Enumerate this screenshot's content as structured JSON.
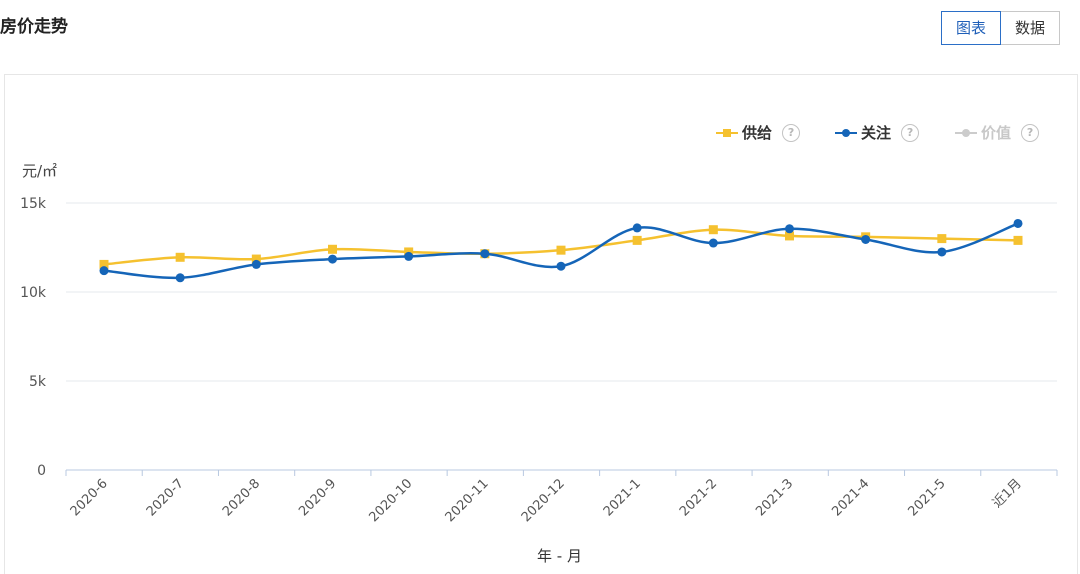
{
  "header": {
    "title": "房价走势",
    "toggle": [
      {
        "label": "图表",
        "active": true
      },
      {
        "label": "数据",
        "active": false
      }
    ]
  },
  "legend": [
    {
      "label": "供给",
      "color": "#f5c12f",
      "marker": "square",
      "enabled": true,
      "help": "?"
    },
    {
      "label": "关注",
      "color": "#1565b8",
      "marker": "circle",
      "enabled": true,
      "help": "?"
    },
    {
      "label": "价值",
      "color": "#cccccc",
      "marker": "circle",
      "enabled": false,
      "help": "?"
    }
  ],
  "chart_data": {
    "type": "line",
    "xlabel": "年 - 月",
    "ylabel": "元/㎡",
    "categories": [
      "2020-6",
      "2020-7",
      "2020-8",
      "2020-9",
      "2020-10",
      "2020-11",
      "2020-12",
      "2021-1",
      "2021-2",
      "2021-3",
      "2021-4",
      "2021-5",
      "近1月"
    ],
    "ylim": [
      0,
      15000
    ],
    "yticks": [
      {
        "value": 0,
        "label": "0"
      },
      {
        "value": 5000,
        "label": "5k"
      },
      {
        "value": 10000,
        "label": "10k"
      },
      {
        "value": 15000,
        "label": "15k"
      }
    ],
    "grid": true,
    "legend_position": "top-right",
    "series": [
      {
        "name": "供给",
        "color": "#f5c12f",
        "marker": "square",
        "values": [
          11550,
          11950,
          11850,
          12400,
          12250,
          12150,
          12350,
          12900,
          13500,
          13150,
          13100,
          13000,
          12900
        ]
      },
      {
        "name": "关注",
        "color": "#1565b8",
        "marker": "circle",
        "values": [
          11200,
          10800,
          11550,
          11850,
          12000,
          12150,
          11450,
          13600,
          12750,
          13550,
          12950,
          12250,
          13850
        ]
      }
    ]
  }
}
